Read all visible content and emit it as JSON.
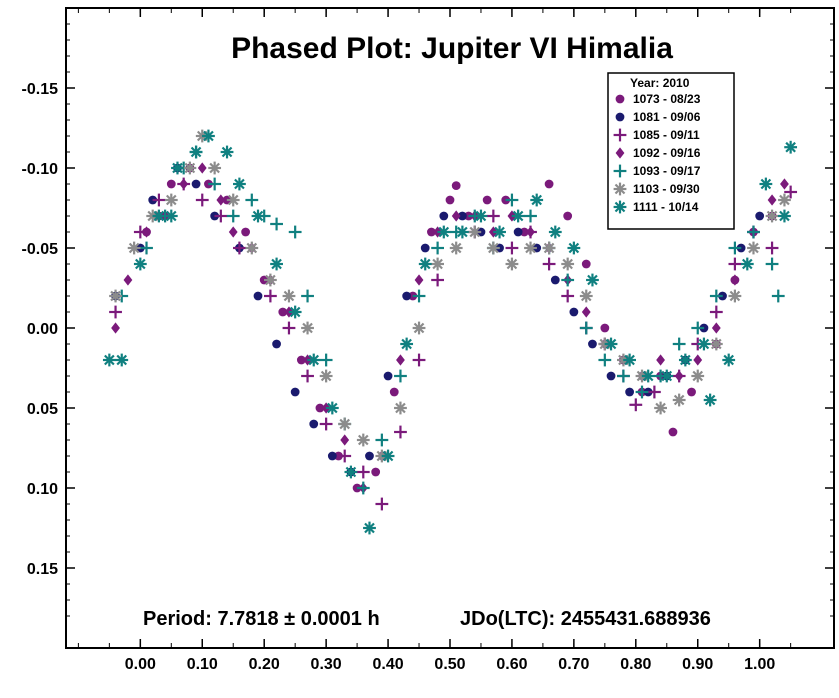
{
  "chart_data": {
    "type": "scatter",
    "title": "Phased Plot: Jupiter VI Himalia",
    "period_text": "Period: 7.7818 ± 0.0001 h",
    "epoch_text": "JDo(LTC): 2455431.688936",
    "xlabel": "",
    "ylabel": "",
    "xlim": [
      -0.12,
      1.12
    ],
    "ylim": [
      0.2,
      -0.2
    ],
    "y_inverted": true,
    "x_ticks": [
      "0.00",
      "0.10",
      "0.20",
      "0.30",
      "0.40",
      "0.50",
      "0.60",
      "0.70",
      "0.80",
      "0.90",
      "1.00"
    ],
    "y_ticks": [
      "-0.15",
      "-0.10",
      "-0.05",
      "0.00",
      "0.05",
      "0.10",
      "0.15"
    ],
    "grid": false,
    "legend": {
      "placement": "top-right",
      "title": "Year: 2010",
      "entries": [
        {
          "label": "1073 - 08/23",
          "marker": "circle",
          "color": "#7b1a7b"
        },
        {
          "label": "1081 - 09/06",
          "marker": "circle",
          "color": "#1a1a6e"
        },
        {
          "label": "1085 - 09/11",
          "marker": "plus",
          "color": "#7b1a7b"
        },
        {
          "label": "1092 - 09/16",
          "marker": "diamond",
          "color": "#7b1a7b"
        },
        {
          "label": "1093 - 09/17",
          "marker": "plus",
          "color": "#108080"
        },
        {
          "label": "1103 - 09/30",
          "marker": "asterisk",
          "color": "#8c8c8c"
        },
        {
          "label": "1111 - 10/14",
          "marker": "asterisk",
          "color": "#108080"
        }
      ]
    },
    "series": [
      {
        "name": "1073 - 08/23",
        "marker": "circle",
        "color": "#7b1a7b",
        "points": [
          [
            0.01,
            -0.06
          ],
          [
            0.03,
            -0.07
          ],
          [
            0.05,
            -0.09
          ],
          [
            0.08,
            -0.1
          ],
          [
            0.11,
            -0.09
          ],
          [
            0.14,
            -0.08
          ],
          [
            0.17,
            -0.06
          ],
          [
            0.2,
            -0.03
          ],
          [
            0.23,
            -0.01
          ],
          [
            0.26,
            0.02
          ],
          [
            0.29,
            0.05
          ],
          [
            0.32,
            0.08
          ],
          [
            0.35,
            0.1
          ],
          [
            0.38,
            0.09
          ],
          [
            0.41,
            0.04
          ],
          [
            0.44,
            -0.02
          ],
          [
            0.47,
            -0.06
          ],
          [
            0.5,
            -0.08
          ],
          [
            0.51,
            -0.089
          ],
          [
            0.53,
            -0.07
          ],
          [
            0.56,
            -0.08
          ],
          [
            0.59,
            -0.08
          ],
          [
            0.62,
            -0.06
          ],
          [
            0.66,
            -0.09
          ],
          [
            0.69,
            -0.07
          ],
          [
            0.72,
            -0.04
          ],
          [
            0.75,
            0.0
          ],
          [
            0.78,
            0.02
          ],
          [
            0.81,
            0.04
          ],
          [
            0.84,
            0.03
          ],
          [
            0.86,
            0.065
          ],
          [
            0.89,
            0.04
          ],
          [
            0.93,
            0.01
          ],
          [
            0.96,
            -0.03
          ],
          [
            0.99,
            -0.06
          ],
          [
            1.02,
            -0.07
          ]
        ]
      },
      {
        "name": "1081 - 09/06",
        "marker": "circle",
        "color": "#1a1a6e",
        "points": [
          [
            -0.04,
            -0.02
          ],
          [
            0.0,
            -0.05
          ],
          [
            0.02,
            -0.08
          ],
          [
            0.06,
            -0.1
          ],
          [
            0.09,
            -0.09
          ],
          [
            0.12,
            -0.07
          ],
          [
            0.16,
            -0.05
          ],
          [
            0.19,
            -0.02
          ],
          [
            0.22,
            0.01
          ],
          [
            0.25,
            0.04
          ],
          [
            0.28,
            0.06
          ],
          [
            0.31,
            0.08
          ],
          [
            0.34,
            0.09
          ],
          [
            0.37,
            0.08
          ],
          [
            0.4,
            0.03
          ],
          [
            0.43,
            -0.02
          ],
          [
            0.46,
            -0.05
          ],
          [
            0.49,
            -0.07
          ],
          [
            0.52,
            -0.07
          ],
          [
            0.55,
            -0.06
          ],
          [
            0.58,
            -0.05
          ],
          [
            0.61,
            -0.06
          ],
          [
            0.64,
            -0.05
          ],
          [
            0.67,
            -0.03
          ],
          [
            0.7,
            -0.01
          ],
          [
            0.73,
            0.01
          ],
          [
            0.76,
            0.03
          ],
          [
            0.79,
            0.04
          ],
          [
            0.82,
            0.04
          ],
          [
            0.85,
            0.03
          ],
          [
            0.88,
            0.02
          ],
          [
            0.91,
            0.0
          ],
          [
            0.94,
            -0.02
          ],
          [
            0.97,
            -0.05
          ],
          [
            1.0,
            -0.07
          ]
        ]
      },
      {
        "name": "1085 - 09/11",
        "marker": "plus",
        "color": "#7b1a7b",
        "points": [
          [
            -0.04,
            -0.01
          ],
          [
            0.0,
            -0.06
          ],
          [
            0.03,
            -0.08
          ],
          [
            0.07,
            -0.09
          ],
          [
            0.1,
            -0.08
          ],
          [
            0.13,
            -0.07
          ],
          [
            0.16,
            -0.05
          ],
          [
            0.21,
            -0.02
          ],
          [
            0.24,
            0.0
          ],
          [
            0.27,
            0.03
          ],
          [
            0.3,
            0.06
          ],
          [
            0.33,
            0.08
          ],
          [
            0.36,
            0.09
          ],
          [
            0.39,
            0.11
          ],
          [
            0.42,
            0.065
          ],
          [
            0.45,
            0.02
          ],
          [
            0.48,
            -0.03
          ],
          [
            0.54,
            -0.06
          ],
          [
            0.57,
            -0.07
          ],
          [
            0.6,
            -0.05
          ],
          [
            0.63,
            -0.06
          ],
          [
            0.66,
            -0.04
          ],
          [
            0.69,
            -0.02
          ],
          [
            0.72,
            0.0
          ],
          [
            0.75,
            0.01
          ],
          [
            0.78,
            0.03
          ],
          [
            0.8,
            0.048
          ],
          [
            0.83,
            0.04
          ],
          [
            0.87,
            0.03
          ],
          [
            0.9,
            0.01
          ],
          [
            0.93,
            -0.01
          ],
          [
            0.96,
            -0.04
          ],
          [
            0.99,
            -0.06
          ],
          [
            1.02,
            -0.05
          ],
          [
            1.05,
            -0.085
          ]
        ]
      },
      {
        "name": "1092 - 09/16",
        "marker": "diamond",
        "color": "#7b1a7b",
        "points": [
          [
            -0.04,
            0.0
          ],
          [
            -0.02,
            -0.03
          ],
          [
            0.01,
            -0.06
          ],
          [
            0.04,
            -0.07
          ],
          [
            0.07,
            -0.09
          ],
          [
            0.1,
            -0.1
          ],
          [
            0.13,
            -0.08
          ],
          [
            0.15,
            -0.06
          ],
          [
            0.18,
            -0.05
          ],
          [
            0.21,
            -0.03
          ],
          [
            0.24,
            -0.01
          ],
          [
            0.27,
            0.02
          ],
          [
            0.3,
            0.05
          ],
          [
            0.33,
            0.07
          ],
          [
            0.36,
            0.1
          ],
          [
            0.39,
            0.08
          ],
          [
            0.42,
            0.02
          ],
          [
            0.45,
            -0.03
          ],
          [
            0.48,
            -0.06
          ],
          [
            0.51,
            -0.07
          ],
          [
            0.54,
            -0.07
          ],
          [
            0.57,
            -0.06
          ],
          [
            0.6,
            -0.07
          ],
          [
            0.63,
            -0.06
          ],
          [
            0.66,
            -0.05
          ],
          [
            0.69,
            -0.03
          ],
          [
            0.72,
            -0.01
          ],
          [
            0.75,
            0.01
          ],
          [
            0.78,
            0.02
          ],
          [
            0.81,
            0.03
          ],
          [
            0.84,
            0.02
          ],
          [
            0.87,
            0.03
          ],
          [
            0.9,
            0.02
          ],
          [
            0.93,
            0.0
          ],
          [
            0.96,
            -0.03
          ],
          [
            0.99,
            -0.06
          ],
          [
            1.02,
            -0.08
          ],
          [
            1.04,
            -0.09
          ]
        ]
      },
      {
        "name": "1093 - 09/17",
        "marker": "plus",
        "color": "#108080",
        "points": [
          [
            -0.03,
            -0.02
          ],
          [
            0.01,
            -0.05
          ],
          [
            0.04,
            -0.07
          ],
          [
            0.07,
            -0.1
          ],
          [
            0.09,
            -0.11
          ],
          [
            0.12,
            -0.09
          ],
          [
            0.15,
            -0.07
          ],
          [
            0.18,
            -0.08
          ],
          [
            0.2,
            -0.07
          ],
          [
            0.22,
            -0.065
          ],
          [
            0.25,
            -0.06
          ],
          [
            0.27,
            -0.02
          ],
          [
            0.3,
            0.02
          ],
          [
            0.33,
            0.06
          ],
          [
            0.36,
            0.1
          ],
          [
            0.39,
            0.07
          ],
          [
            0.42,
            0.03
          ],
          [
            0.45,
            -0.02
          ],
          [
            0.48,
            -0.05
          ],
          [
            0.51,
            -0.06
          ],
          [
            0.54,
            -0.07
          ],
          [
            0.57,
            -0.05
          ],
          [
            0.6,
            -0.08
          ],
          [
            0.63,
            -0.07
          ],
          [
            0.66,
            -0.05
          ],
          [
            0.69,
            -0.03
          ],
          [
            0.72,
            0.0
          ],
          [
            0.75,
            0.02
          ],
          [
            0.78,
            0.03
          ],
          [
            0.81,
            0.04
          ],
          [
            0.84,
            0.03
          ],
          [
            0.87,
            0.01
          ],
          [
            0.9,
            0.0
          ],
          [
            0.93,
            -0.02
          ],
          [
            0.96,
            -0.05
          ],
          [
            0.99,
            -0.06
          ],
          [
            1.02,
            -0.04
          ],
          [
            1.03,
            -0.02
          ]
        ]
      },
      {
        "name": "1103 - 09/30",
        "marker": "asterisk",
        "color": "#8c8c8c",
        "points": [
          [
            -0.04,
            -0.02
          ],
          [
            -0.01,
            -0.05
          ],
          [
            0.02,
            -0.07
          ],
          [
            0.05,
            -0.08
          ],
          [
            0.08,
            -0.1
          ],
          [
            0.1,
            -0.12
          ],
          [
            0.12,
            -0.1
          ],
          [
            0.15,
            -0.08
          ],
          [
            0.18,
            -0.05
          ],
          [
            0.21,
            -0.03
          ],
          [
            0.24,
            -0.02
          ],
          [
            0.27,
            0.0
          ],
          [
            0.3,
            0.03
          ],
          [
            0.33,
            0.06
          ],
          [
            0.36,
            0.07
          ],
          [
            0.39,
            0.08
          ],
          [
            0.42,
            0.05
          ],
          [
            0.45,
            0.0
          ],
          [
            0.48,
            -0.04
          ],
          [
            0.51,
            -0.05
          ],
          [
            0.54,
            -0.06
          ],
          [
            0.57,
            -0.05
          ],
          [
            0.6,
            -0.04
          ],
          [
            0.63,
            -0.05
          ],
          [
            0.66,
            -0.05
          ],
          [
            0.69,
            -0.04
          ],
          [
            0.72,
            -0.02
          ],
          [
            0.75,
            0.01
          ],
          [
            0.78,
            0.02
          ],
          [
            0.81,
            0.03
          ],
          [
            0.84,
            0.05
          ],
          [
            0.87,
            0.045
          ],
          [
            0.9,
            0.03
          ],
          [
            0.93,
            0.01
          ],
          [
            0.96,
            -0.02
          ],
          [
            0.99,
            -0.05
          ],
          [
            1.02,
            -0.07
          ],
          [
            1.04,
            -0.08
          ]
        ]
      },
      {
        "name": "1111 - 10/14",
        "marker": "asterisk",
        "color": "#108080",
        "points": [
          [
            -0.05,
            0.02
          ],
          [
            -0.03,
            0.02
          ],
          [
            0.0,
            -0.04
          ],
          [
            0.03,
            -0.07
          ],
          [
            0.05,
            -0.07
          ],
          [
            0.06,
            -0.1
          ],
          [
            0.09,
            -0.11
          ],
          [
            0.11,
            -0.12
          ],
          [
            0.14,
            -0.11
          ],
          [
            0.16,
            -0.09
          ],
          [
            0.19,
            -0.07
          ],
          [
            0.22,
            -0.04
          ],
          [
            0.25,
            -0.01
          ],
          [
            0.28,
            0.02
          ],
          [
            0.31,
            0.05
          ],
          [
            0.34,
            0.09
          ],
          [
            0.37,
            0.125
          ],
          [
            0.4,
            0.08
          ],
          [
            0.43,
            0.01
          ],
          [
            0.46,
            -0.04
          ],
          [
            0.49,
            -0.06
          ],
          [
            0.52,
            -0.06
          ],
          [
            0.55,
            -0.07
          ],
          [
            0.58,
            -0.06
          ],
          [
            0.61,
            -0.07
          ],
          [
            0.64,
            -0.08
          ],
          [
            0.67,
            -0.06
          ],
          [
            0.7,
            -0.05
          ],
          [
            0.73,
            -0.03
          ],
          [
            0.76,
            0.01
          ],
          [
            0.79,
            0.02
          ],
          [
            0.82,
            0.03
          ],
          [
            0.85,
            0.03
          ],
          [
            0.88,
            0.02
          ],
          [
            0.91,
            0.01
          ],
          [
            0.92,
            0.045
          ],
          [
            0.95,
            0.02
          ],
          [
            0.98,
            -0.04
          ],
          [
            1.01,
            -0.09
          ],
          [
            1.04,
            -0.07
          ],
          [
            1.05,
            -0.113
          ]
        ]
      }
    ]
  }
}
